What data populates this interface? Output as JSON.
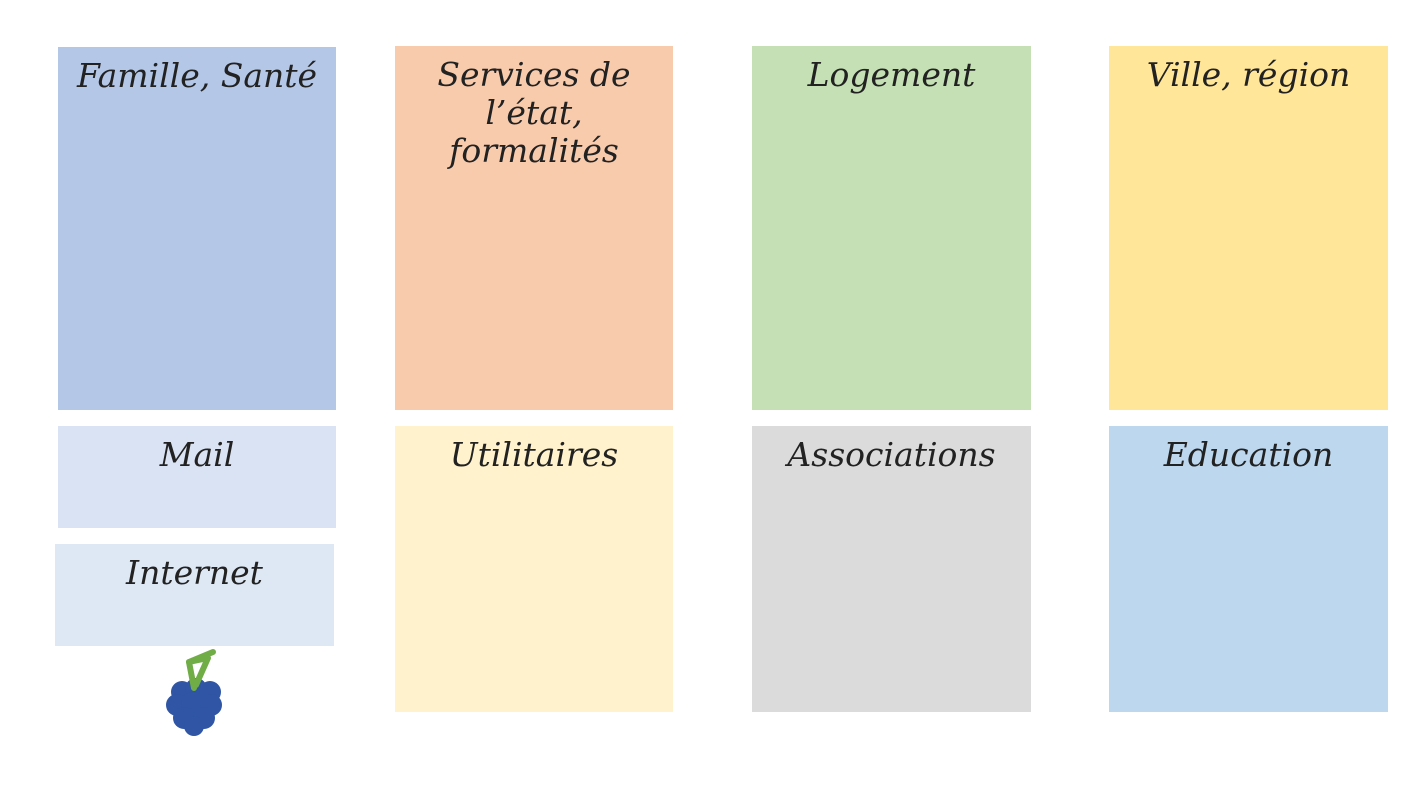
{
  "cards": {
    "famille_sante": {
      "label": "Famille, Santé",
      "color": "#b4c7e7"
    },
    "services_etat": {
      "label": "Services de\nl’état, formalités",
      "color": "#f8cbad"
    },
    "logement": {
      "label": "Logement",
      "color": "#c5e0b4"
    },
    "ville_region": {
      "label": "Ville, région",
      "color": "#ffe699"
    },
    "mail": {
      "label": "Mail",
      "color": "#dae3f3"
    },
    "internet": {
      "label": "Internet",
      "color": "#dee8f5"
    },
    "utilitaires": {
      "label": "Utilitaires",
      "color": "#fff2cc"
    },
    "associations": {
      "label": "Associations",
      "color": "#dbdbdb"
    },
    "education": {
      "label": "Education",
      "color": "#bdd7ee"
    }
  },
  "logo": {
    "icon": "raspberry-icon",
    "berry_color": "#2f55a4",
    "leaf_color": "#70ad47"
  }
}
